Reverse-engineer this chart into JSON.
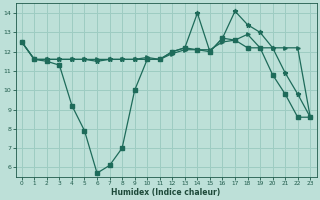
{
  "line1_zigzag": {
    "x": [
      0,
      1,
      2,
      3,
      4,
      5,
      6,
      7,
      8,
      9,
      10,
      11,
      12,
      13,
      14,
      15,
      16,
      17,
      18,
      19,
      20,
      21,
      22,
      23
    ],
    "y": [
      12.5,
      11.6,
      11.5,
      11.3,
      9.2,
      7.9,
      5.7,
      6.1,
      7.0,
      10.0,
      11.6,
      11.6,
      12.0,
      12.2,
      12.1,
      12.0,
      12.7,
      12.6,
      12.2,
      12.2,
      10.8,
      9.8,
      8.6,
      8.6
    ]
  },
  "line2_flat": {
    "x": [
      0,
      1,
      2,
      3,
      4,
      5,
      6,
      7,
      8,
      9,
      10,
      11,
      12,
      13,
      14,
      15,
      16,
      17,
      18,
      19,
      20,
      21,
      22,
      23
    ],
    "y": [
      12.5,
      11.6,
      11.6,
      11.6,
      11.6,
      11.6,
      11.6,
      11.6,
      11.6,
      11.6,
      11.7,
      11.6,
      11.9,
      12.1,
      12.1,
      12.1,
      12.5,
      12.6,
      12.9,
      12.2,
      12.2,
      12.2,
      12.2,
      8.6
    ]
  },
  "line3_spike": {
    "x": [
      0,
      1,
      2,
      3,
      4,
      5,
      6,
      7,
      8,
      9,
      10,
      11,
      12,
      13,
      14,
      15,
      16,
      17,
      18,
      19,
      20,
      21,
      22,
      23
    ],
    "y": [
      12.5,
      11.6,
      11.6,
      11.6,
      11.6,
      11.6,
      11.5,
      11.6,
      11.6,
      11.6,
      11.6,
      11.6,
      12.0,
      12.2,
      14.0,
      12.0,
      12.7,
      14.1,
      13.4,
      13.0,
      12.2,
      10.9,
      9.8,
      8.6
    ]
  },
  "xlim": [
    -0.5,
    23.5
  ],
  "ylim": [
    5.5,
    14.5
  ],
  "yticks": [
    6,
    7,
    8,
    9,
    10,
    11,
    12,
    13,
    14
  ],
  "xticks": [
    0,
    1,
    2,
    3,
    4,
    5,
    6,
    7,
    8,
    9,
    10,
    11,
    12,
    13,
    14,
    15,
    16,
    17,
    18,
    19,
    20,
    21,
    22,
    23
  ],
  "xlabel": "Humidex (Indice chaleur)",
  "bg_color": "#bde0d8",
  "grid_color": "#9eccc2",
  "line_color": "#1e6b5a",
  "tick_color": "#1e5a4a",
  "label_color": "#1e4a3a"
}
